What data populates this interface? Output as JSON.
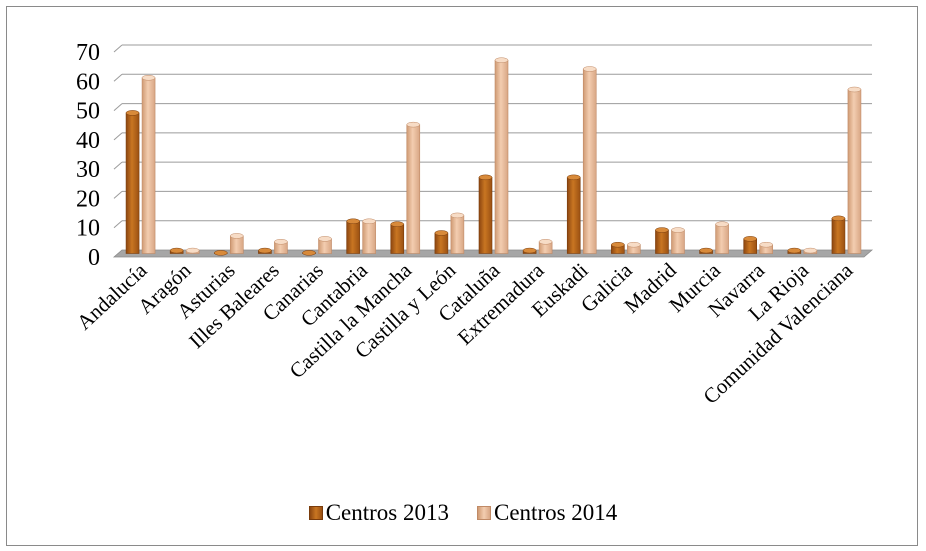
{
  "chart_data": {
    "type": "bar",
    "title": "",
    "xlabel": "",
    "ylabel": "",
    "ylim": [
      0,
      70
    ],
    "yticks": [
      "0",
      "10",
      "20",
      "30",
      "40",
      "50",
      "60",
      "70"
    ],
    "grid": true,
    "legend_position": "bottom",
    "categories": [
      "Andalucía",
      "Aragón",
      "Asturias",
      "Illes Baleares",
      "Canarias",
      "Cantabria",
      "Castilla la Mancha",
      "Castilla y León",
      "Cataluña",
      "Extremadura",
      "Euskadi",
      "Galicia",
      "Madrid",
      "Murcia",
      "Navarra",
      "La Rioja",
      "Comunidad Valenciana"
    ],
    "series": [
      {
        "name": "Centros 2013",
        "color": "#b8631a",
        "values": [
          48,
          1,
          0,
          1,
          0,
          11,
          10,
          7,
          26,
          1,
          26,
          3,
          8,
          1,
          5,
          1,
          12
        ]
      },
      {
        "name": "Centros 2014",
        "color": "#e9b893",
        "values": [
          60,
          1,
          6,
          4,
          5,
          11,
          44,
          13,
          66,
          4,
          63,
          3,
          8,
          10,
          3,
          1,
          56
        ]
      }
    ]
  }
}
